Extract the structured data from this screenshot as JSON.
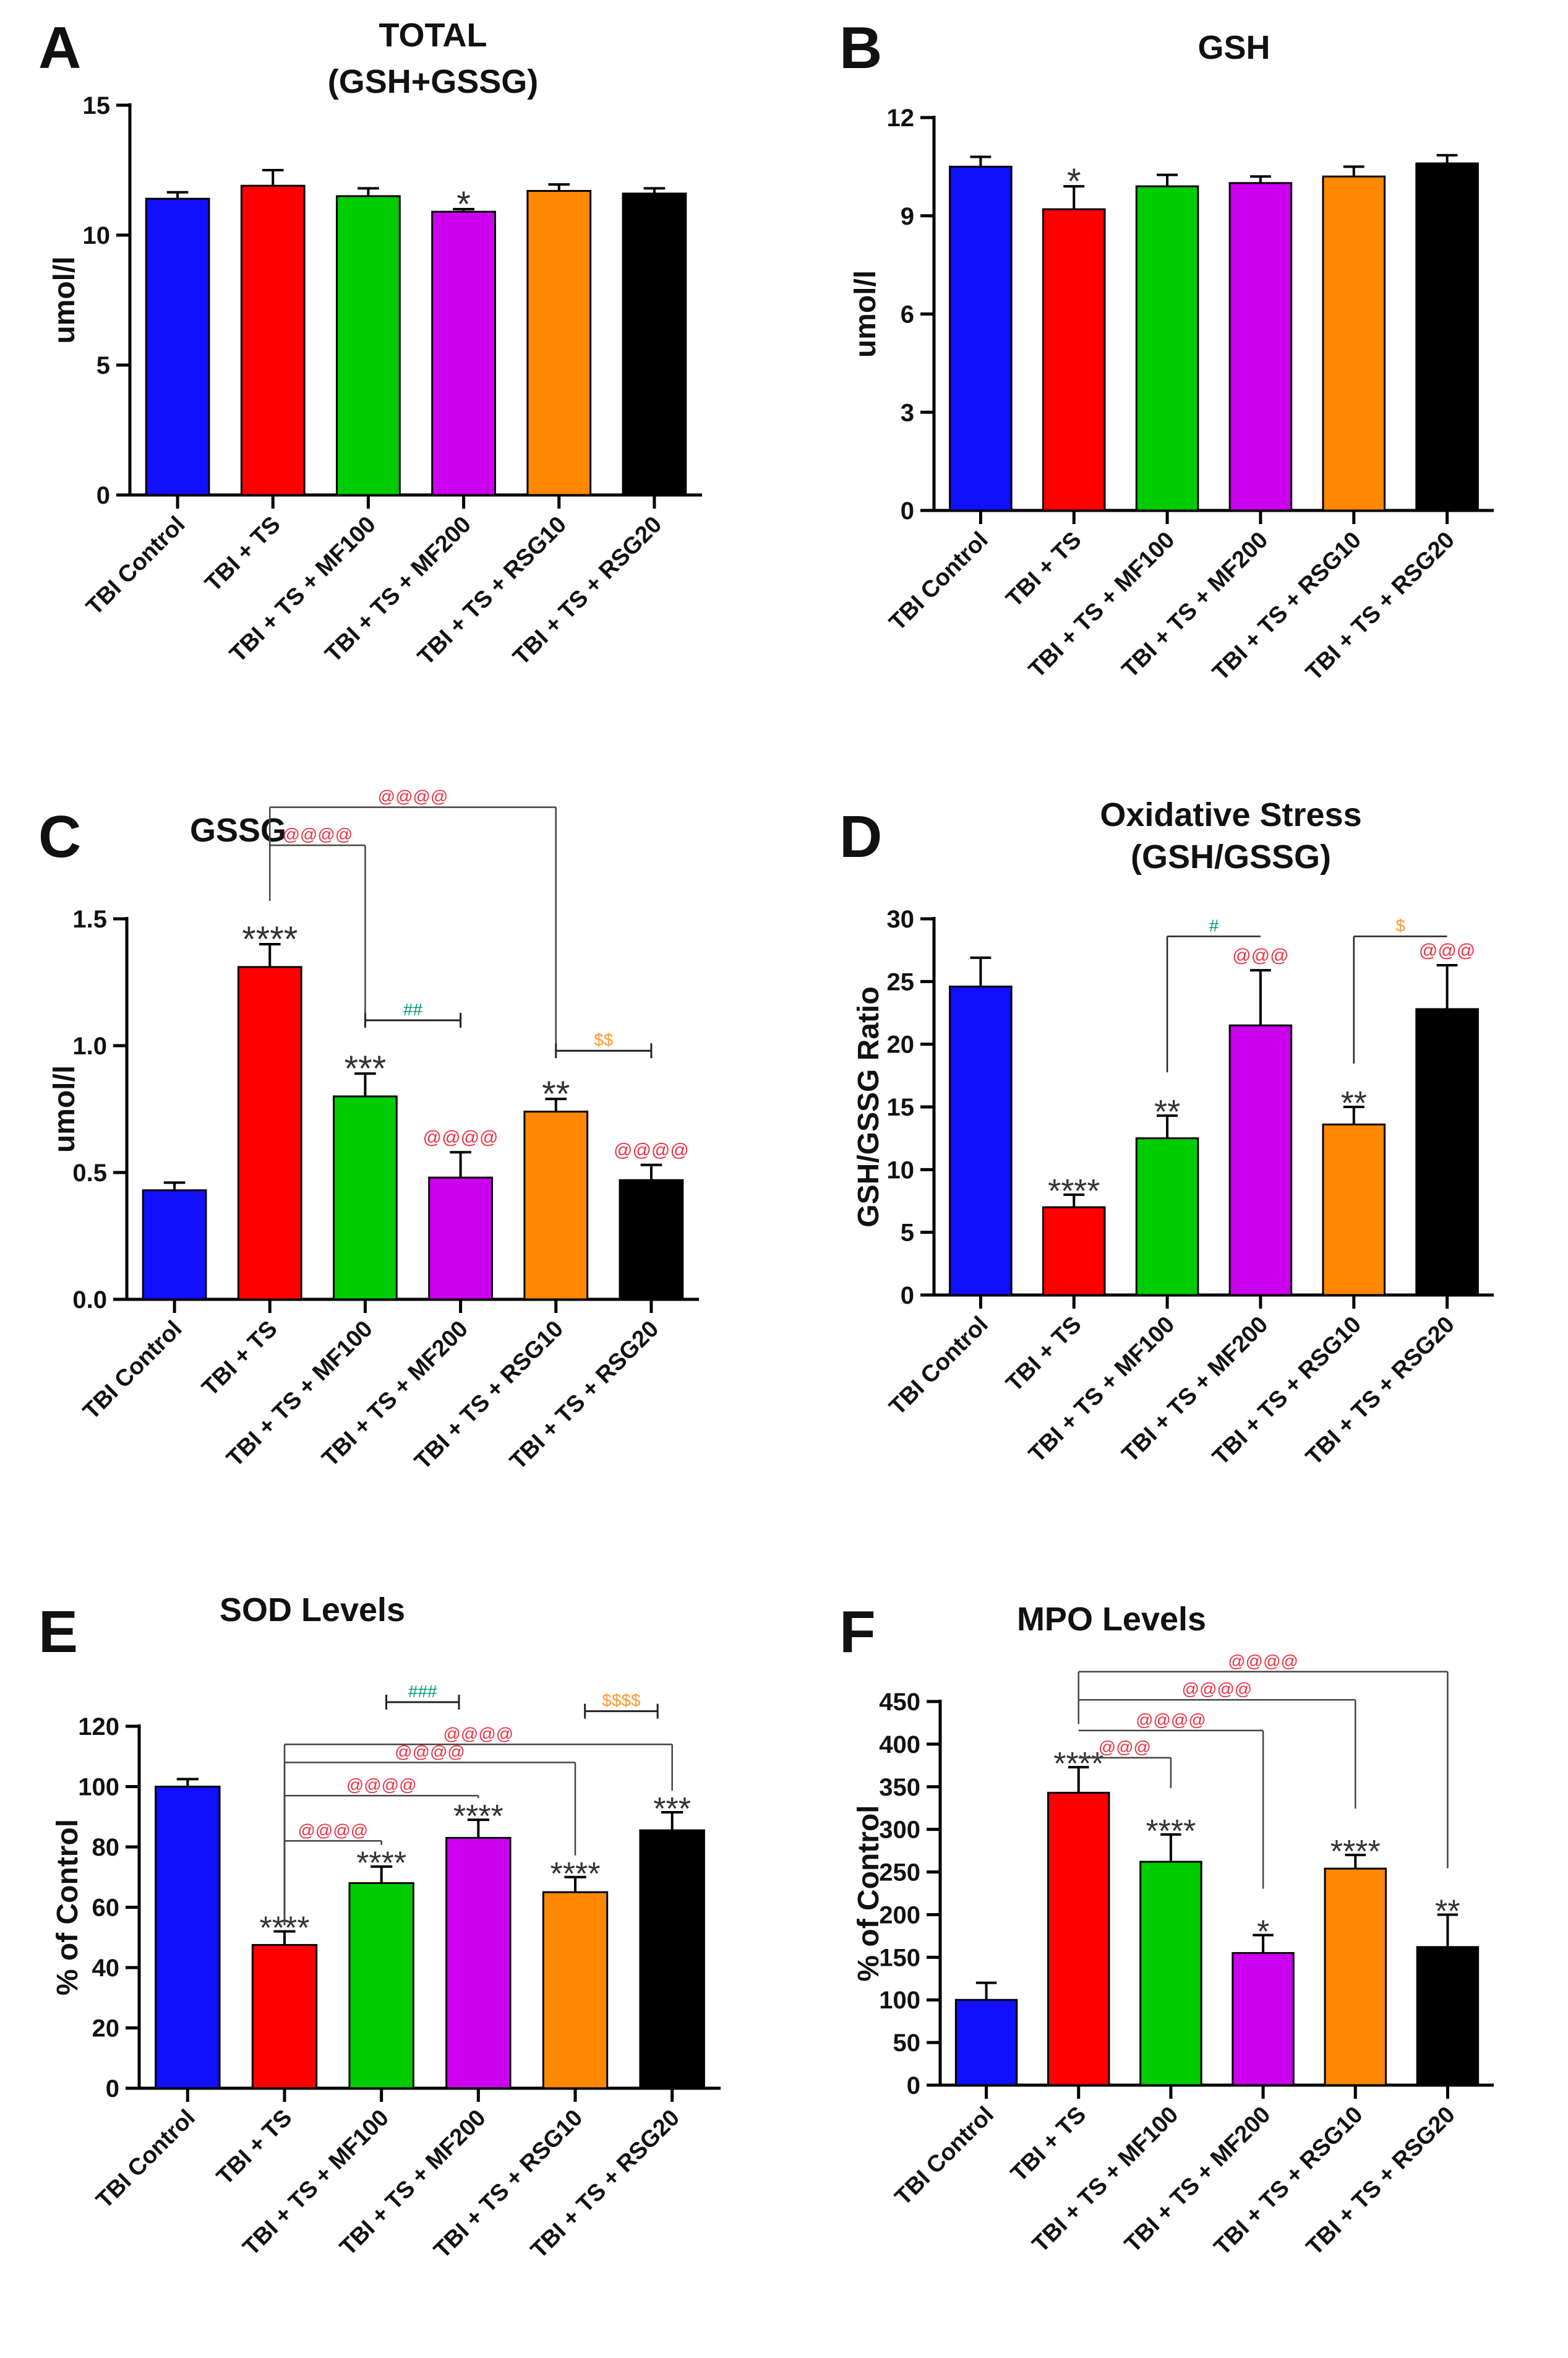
{
  "group_labels": [
    "TBI Control",
    "TBI + TS",
    "TBI + TS + MF100",
    "TBI + TS + MF200",
    "TBI + TS + RSG10",
    "TBI + TS + RSG20"
  ],
  "colors": {
    "bars": [
      "#1010ff",
      "#ff0000",
      "#00cc00",
      "#cc00ee",
      "#ff8800",
      "#000000"
    ],
    "at": "#ee3344",
    "hash": "#009977",
    "dollar": "#ff9933",
    "text": "#111111"
  },
  "chart_data": [
    {
      "type": "bar",
      "panel": "A",
      "title": [
        "TOTAL",
        "(GSH+GSSG)"
      ],
      "ylabel": "umol/l",
      "ylim": [
        0,
        15
      ],
      "yticks": [
        0,
        5,
        10,
        15
      ],
      "ytick_labels": [
        "0",
        "5",
        "10",
        "15"
      ],
      "categories": [
        "TBI Control",
        "TBI + TS",
        "TBI + TS + MF100",
        "TBI + TS + MF200",
        "TBI + TS + RSG10",
        "TBI + TS + RSG20"
      ],
      "values": [
        11.4,
        11.9,
        11.5,
        10.9,
        11.7,
        11.6
      ],
      "errors": [
        0.25,
        0.6,
        0.3,
        0.1,
        0.25,
        0.2
      ],
      "stars": [
        "",
        "",
        "",
        "*",
        "",
        ""
      ],
      "brackets": []
    },
    {
      "type": "bar",
      "panel": "B",
      "title": [
        "GSH"
      ],
      "ylabel": "umol/l",
      "ylim": [
        0,
        12
      ],
      "yticks": [
        0,
        3,
        6,
        9,
        12
      ],
      "ytick_labels": [
        "0",
        "3",
        "6",
        "9",
        "12"
      ],
      "categories": [
        "TBI Control",
        "TBI + TS",
        "TBI + TS + MF100",
        "TBI + TS + MF200",
        "TBI + TS + RSG10",
        "TBI + TS + RSG20"
      ],
      "values": [
        10.5,
        9.2,
        9.9,
        10.0,
        10.2,
        10.6
      ],
      "errors": [
        0.3,
        0.7,
        0.35,
        0.2,
        0.3,
        0.25
      ],
      "stars": [
        "",
        "*",
        "",
        "",
        "",
        ""
      ],
      "brackets": []
    },
    {
      "type": "bar",
      "panel": "C",
      "title": [
        "GSSG"
      ],
      "ylabel": "umol/l",
      "ylim": [
        0,
        1.5
      ],
      "yticks": [
        0,
        0.5,
        1.0,
        1.5
      ],
      "ytick_labels": [
        "0.0",
        "0.5",
        "1.0",
        "1.5"
      ],
      "categories": [
        "TBI Control",
        "TBI + TS",
        "TBI + TS + MF100",
        "TBI + TS + MF200",
        "TBI + TS + RSG10",
        "TBI + TS + RSG20"
      ],
      "values": [
        0.43,
        1.31,
        0.8,
        0.48,
        0.74,
        0.47
      ],
      "errors": [
        0.03,
        0.09,
        0.09,
        0.1,
        0.05,
        0.06
      ],
      "stars": [
        "",
        "****",
        "***",
        "",
        "**",
        ""
      ],
      "marks": [
        "",
        "",
        "",
        "@@@@",
        "",
        "@@@@"
      ],
      "brackets": [
        {
          "style": "drop",
          "from": 1,
          "to": 4,
          "level": 1.94,
          "label": "@@@@",
          "kind": "at"
        },
        {
          "style": "drop",
          "from": 1,
          "to": 2,
          "level": 1.79,
          "label": "@@@@",
          "kind": "at"
        },
        {
          "style": "cap",
          "from": 2,
          "to": 3,
          "level": 1.1,
          "label": "##",
          "kind": "hash"
        },
        {
          "style": "cap",
          "from": 4,
          "to": 5,
          "level": 0.98,
          "label": "$$",
          "kind": "dollar"
        }
      ]
    },
    {
      "type": "bar",
      "panel": "D",
      "title": [
        "Oxidative Stress",
        "(GSH/GSSG)"
      ],
      "ylabel": "GSH/GSSG Ratio",
      "ylim": [
        0,
        30
      ],
      "yticks": [
        0,
        5,
        10,
        15,
        20,
        25,
        30
      ],
      "ytick_labels": [
        "0",
        "5",
        "10",
        "15",
        "20",
        "25",
        "30"
      ],
      "categories": [
        "TBI Control",
        "TBI + TS",
        "TBI + TS + MF100",
        "TBI + TS + MF200",
        "TBI + TS + RSG10",
        "TBI + TS + RSG20"
      ],
      "values": [
        24.6,
        7.0,
        12.5,
        21.5,
        13.6,
        22.8
      ],
      "errors": [
        2.3,
        1.0,
        1.8,
        4.4,
        1.4,
        3.5
      ],
      "stars": [
        "",
        "****",
        "**",
        "",
        "**",
        ""
      ],
      "marks": [
        "",
        "",
        "",
        "@@@",
        "",
        "@@@"
      ],
      "brackets": [
        {
          "style": "drop",
          "from": 2,
          "to": 3,
          "level": 28.6,
          "label": "#",
          "kind": "hash"
        },
        {
          "style": "drop",
          "from": 4,
          "to": 5,
          "level": 28.6,
          "label": "$",
          "kind": "dollar"
        }
      ]
    },
    {
      "type": "bar",
      "panel": "E",
      "title": [
        "SOD Levels"
      ],
      "ylabel": "% of Control",
      "ylim": [
        0,
        120
      ],
      "yticks": [
        0,
        20,
        40,
        60,
        80,
        100,
        120
      ],
      "ytick_labels": [
        "0",
        "20",
        "40",
        "60",
        "80",
        "100",
        "120"
      ],
      "categories": [
        "TBI Control",
        "TBI + TS",
        "TBI + TS + MF100",
        "TBI + TS + MF200",
        "TBI + TS + RSG10",
        "TBI + TS + RSG20"
      ],
      "values": [
        100,
        47.5,
        68,
        83,
        65,
        85.5
      ],
      "errors": [
        2.5,
        4.5,
        5.5,
        6,
        5,
        6
      ],
      "stars": [
        "",
        "****",
        "****",
        "****",
        "****",
        "***"
      ],
      "brackets": [
        {
          "style": "step",
          "from": 1,
          "to": 5,
          "level": 114,
          "label": "@@@@",
          "kind": "at"
        },
        {
          "style": "step",
          "from": 1,
          "to": 4,
          "level": 108,
          "label": "@@@@",
          "kind": "at"
        },
        {
          "style": "step",
          "from": 1,
          "to": 3,
          "level": 97,
          "label": "@@@@",
          "kind": "at"
        },
        {
          "style": "step",
          "from": 1,
          "to": 2,
          "level": 82,
          "label": "@@@@",
          "kind": "at"
        },
        {
          "style": "cap",
          "from": 2.05,
          "to": 2.8,
          "level": 128,
          "label": "###",
          "kind": "hash"
        },
        {
          "style": "cap",
          "from": 4.1,
          "to": 4.85,
          "level": 125,
          "label": "$$$$",
          "kind": "dollar"
        }
      ]
    },
    {
      "type": "bar",
      "panel": "F",
      "title": [
        "MPO Levels"
      ],
      "ylabel": "% of Control",
      "ylim": [
        0,
        450
      ],
      "yticks": [
        0,
        50,
        100,
        150,
        200,
        250,
        300,
        350,
        400,
        450
      ],
      "ytick_labels": [
        "0",
        "50",
        "100",
        "150",
        "200",
        "250",
        "300",
        "350",
        "400",
        "450"
      ],
      "categories": [
        "TBI Control",
        "TBI + TS",
        "TBI + TS + MF100",
        "TBI + TS + MF200",
        "TBI + TS + RSG10",
        "TBI + TS + RSG20"
      ],
      "values": [
        100,
        343,
        262,
        155,
        254,
        162
      ],
      "errors": [
        20,
        30,
        32,
        21,
        16,
        38
      ],
      "stars": [
        "",
        "****",
        "****",
        "*",
        "****",
        "**"
      ],
      "brackets": [
        {
          "style": "drop",
          "from": 1,
          "to": 5,
          "level": 485,
          "label": "@@@@",
          "kind": "at"
        },
        {
          "style": "drop",
          "from": 1,
          "to": 4,
          "level": 452,
          "label": "@@@@",
          "kind": "at"
        },
        {
          "style": "drop",
          "from": 1,
          "to": 3,
          "level": 416,
          "label": "@@@@",
          "kind": "at"
        },
        {
          "style": "drop",
          "from": 1,
          "to": 2,
          "level": 384,
          "label": "@@@",
          "kind": "at"
        }
      ]
    }
  ]
}
